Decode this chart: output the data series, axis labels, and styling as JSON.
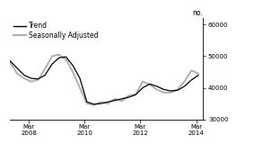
{
  "ylabel": "no.",
  "ylim": [
    30000,
    62000
  ],
  "yticks": [
    30000,
    40000,
    50000,
    60000
  ],
  "xlim_start": 2007.5,
  "xlim_end": 2014.42,
  "xtick_positions": [
    2008.167,
    2010.167,
    2012.167,
    2014.167
  ],
  "xtick_labels": [
    "Mar\n2008",
    "Mar\n2010",
    "Mar\n2012",
    "Mar\n2014"
  ],
  "trend_color": "#000000",
  "sa_color": "#b0b0b0",
  "background_color": "#ffffff",
  "trend_data": [
    [
      2007.5,
      48500
    ],
    [
      2007.75,
      46200
    ],
    [
      2008.0,
      44000
    ],
    [
      2008.25,
      43000
    ],
    [
      2008.5,
      42800
    ],
    [
      2008.75,
      44000
    ],
    [
      2009.0,
      47500
    ],
    [
      2009.25,
      49500
    ],
    [
      2009.5,
      49800
    ],
    [
      2009.75,
      47000
    ],
    [
      2010.0,
      43000
    ],
    [
      2010.25,
      35500
    ],
    [
      2010.5,
      34800
    ],
    [
      2010.75,
      35000
    ],
    [
      2011.0,
      35500
    ],
    [
      2011.25,
      36000
    ],
    [
      2011.5,
      36500
    ],
    [
      2011.75,
      37000
    ],
    [
      2012.0,
      37800
    ],
    [
      2012.25,
      40000
    ],
    [
      2012.5,
      41200
    ],
    [
      2012.75,
      40500
    ],
    [
      2013.0,
      39500
    ],
    [
      2013.25,
      39000
    ],
    [
      2013.5,
      39200
    ],
    [
      2013.75,
      40500
    ],
    [
      2014.0,
      42500
    ],
    [
      2014.25,
      44000
    ]
  ],
  "sa_data": [
    [
      2007.5,
      48000
    ],
    [
      2007.75,
      44500
    ],
    [
      2008.0,
      43000
    ],
    [
      2008.25,
      42000
    ],
    [
      2008.5,
      42500
    ],
    [
      2008.75,
      46000
    ],
    [
      2009.0,
      50000
    ],
    [
      2009.25,
      50500
    ],
    [
      2009.5,
      49000
    ],
    [
      2009.75,
      45000
    ],
    [
      2010.0,
      40000
    ],
    [
      2010.25,
      35000
    ],
    [
      2010.5,
      34500
    ],
    [
      2010.75,
      35500
    ],
    [
      2011.0,
      35000
    ],
    [
      2011.25,
      36500
    ],
    [
      2011.5,
      35800
    ],
    [
      2011.75,
      37500
    ],
    [
      2012.0,
      38000
    ],
    [
      2012.25,
      42000
    ],
    [
      2012.5,
      41000
    ],
    [
      2012.75,
      39500
    ],
    [
      2013.0,
      38500
    ],
    [
      2013.25,
      38500
    ],
    [
      2013.5,
      39500
    ],
    [
      2013.75,
      42000
    ],
    [
      2014.0,
      45500
    ],
    [
      2014.25,
      44500
    ]
  ],
  "legend_entries": [
    "Trend",
    "Seasonally Adjusted"
  ],
  "legend_colors": [
    "#000000",
    "#b0b0b0"
  ],
  "legend_lw": [
    1.0,
    1.6
  ],
  "font_size": 5.0,
  "ylabel_fontsize": 5.5,
  "legend_fontsize": 5.5
}
